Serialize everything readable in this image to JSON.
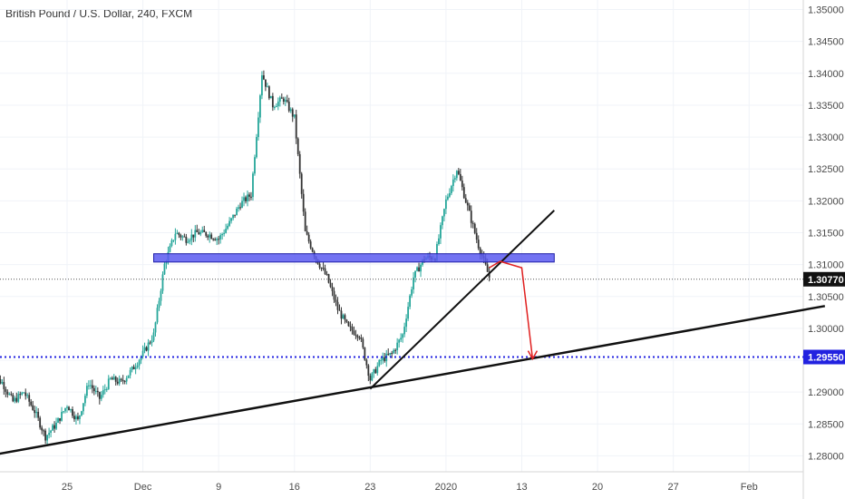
{
  "header": {
    "title": "British Pound / U.S. Dollar, 240, FXCM"
  },
  "chart_data": {
    "type": "candlestick",
    "symbol": "British Pound / U.S. Dollar",
    "timeframe": "240",
    "exchange": "FXCM",
    "ylim": [
      1.2775,
      1.3515
    ],
    "y_ticks": [
      1.35,
      1.345,
      1.34,
      1.335,
      1.33,
      1.325,
      1.32,
      1.315,
      1.31,
      1.305,
      1.3,
      1.295,
      1.29,
      1.285,
      1.28
    ],
    "y_tick_labels": [
      "1.35000",
      "1.34500",
      "1.34000",
      "1.33500",
      "1.33000",
      "1.32500",
      "1.32000",
      "1.31500",
      "1.31000",
      "1.30500",
      "1.30000",
      "1.29500",
      "1.29000",
      "1.28500",
      "1.28000"
    ],
    "x_ticks": [
      {
        "label": "25",
        "date": "2019-11-25"
      },
      {
        "label": "Dec",
        "date": "2019-12-02"
      },
      {
        "label": "9",
        "date": "2019-12-09"
      },
      {
        "label": "16",
        "date": "2019-12-16"
      },
      {
        "label": "23",
        "date": "2019-12-23"
      },
      {
        "label": "2020",
        "date": "2019-12-30"
      },
      {
        "label": "13",
        "date": "2020-01-06"
      },
      {
        "label": "20",
        "date": "2020-01-13"
      },
      {
        "label": "27",
        "date": "2020-01-20"
      },
      {
        "label": "Feb",
        "date": "2020-01-27"
      }
    ],
    "path_points": [
      [
        "2019-11-18",
        1.2925
      ],
      [
        "2019-11-19",
        1.2915
      ],
      [
        "2019-11-20",
        1.2885
      ],
      [
        "2019-11-21",
        1.29
      ],
      [
        "2019-11-22",
        1.287
      ],
      [
        "2019-11-23",
        1.283
      ],
      [
        "2019-11-24",
        1.285
      ],
      [
        "2019-11-25",
        1.288
      ],
      [
        "2019-11-26",
        1.2855
      ],
      [
        "2019-11-27",
        1.2915
      ],
      [
        "2019-11-28",
        1.289
      ],
      [
        "2019-11-29",
        1.292
      ],
      [
        "2019-11-30",
        1.2915
      ],
      [
        "2019-12-01",
        1.2935
      ],
      [
        "2019-12-02",
        1.296
      ],
      [
        "2019-12-03",
        1.299
      ],
      [
        "2019-12-04",
        1.31
      ],
      [
        "2019-12-05",
        1.315
      ],
      [
        "2019-12-06",
        1.314
      ],
      [
        "2019-12-07",
        1.315
      ],
      [
        "2019-12-08",
        1.3148
      ],
      [
        "2019-12-09",
        1.314
      ],
      [
        "2019-12-10",
        1.3165
      ],
      [
        "2019-12-11",
        1.3195
      ],
      [
        "2019-12-12",
        1.321
      ],
      [
        "2019-12-13",
        1.34
      ],
      [
        "2019-12-14",
        1.335
      ],
      [
        "2019-12-15",
        1.336
      ],
      [
        "2019-12-16",
        1.333
      ],
      [
        "2019-12-17",
        1.315
      ],
      [
        "2019-12-18",
        1.311
      ],
      [
        "2019-12-19",
        1.308
      ],
      [
        "2019-12-20",
        1.303
      ],
      [
        "2019-12-21",
        1.3
      ],
      [
        "2019-12-22",
        1.299
      ],
      [
        "2019-12-23",
        1.292
      ],
      [
        "2019-12-24",
        1.295
      ],
      [
        "2019-12-25",
        1.296
      ],
      [
        "2019-12-26",
        1.299
      ],
      [
        "2019-12-27",
        1.308
      ],
      [
        "2019-12-28",
        1.311
      ],
      [
        "2019-12-29",
        1.3112
      ],
      [
        "2019-12-30",
        1.32
      ],
      [
        "2019-12-31",
        1.325
      ],
      [
        "2020-01-01",
        1.319
      ],
      [
        "2020-01-02",
        1.313
      ],
      [
        "2020-01-03",
        1.308
      ]
    ],
    "last_price": 1.3077,
    "last_price_label": "1.30770",
    "level_price": 1.2955,
    "level_price_label": "1.29550",
    "annotations": {
      "resistance_zone": {
        "color": "#5b5bf0",
        "y_range": [
          1.3104,
          1.3117
        ],
        "from": "2019-12-03",
        "to": "2020-01-09"
      },
      "support_dotted_line": {
        "color": "#2222e0",
        "y": 1.2955
      },
      "trendline_long": {
        "color": "#111111",
        "from": [
          "2019-11-16",
          1.2795
        ],
        "to": [
          "2020-02-03",
          1.3035
        ]
      },
      "trendline_short": {
        "color": "#111111",
        "from": [
          "2019-12-23",
          1.2905
        ],
        "to": [
          "2020-01-09",
          1.3185
        ]
      },
      "projection_arrow": {
        "color": "#e02020",
        "points": [
          [
            "2020-01-03",
            1.3095
          ],
          [
            "2020-01-04",
            1.3105
          ],
          [
            "2020-01-05",
            1.31
          ],
          [
            "2020-01-06",
            1.3095
          ],
          [
            "2020-01-07",
            1.2952
          ]
        ]
      }
    },
    "colors": {
      "up": "#26a69a",
      "down": "#333333",
      "grid": "#f0f3f8",
      "axis_text": "#4a4a4a"
    },
    "grid": true
  }
}
